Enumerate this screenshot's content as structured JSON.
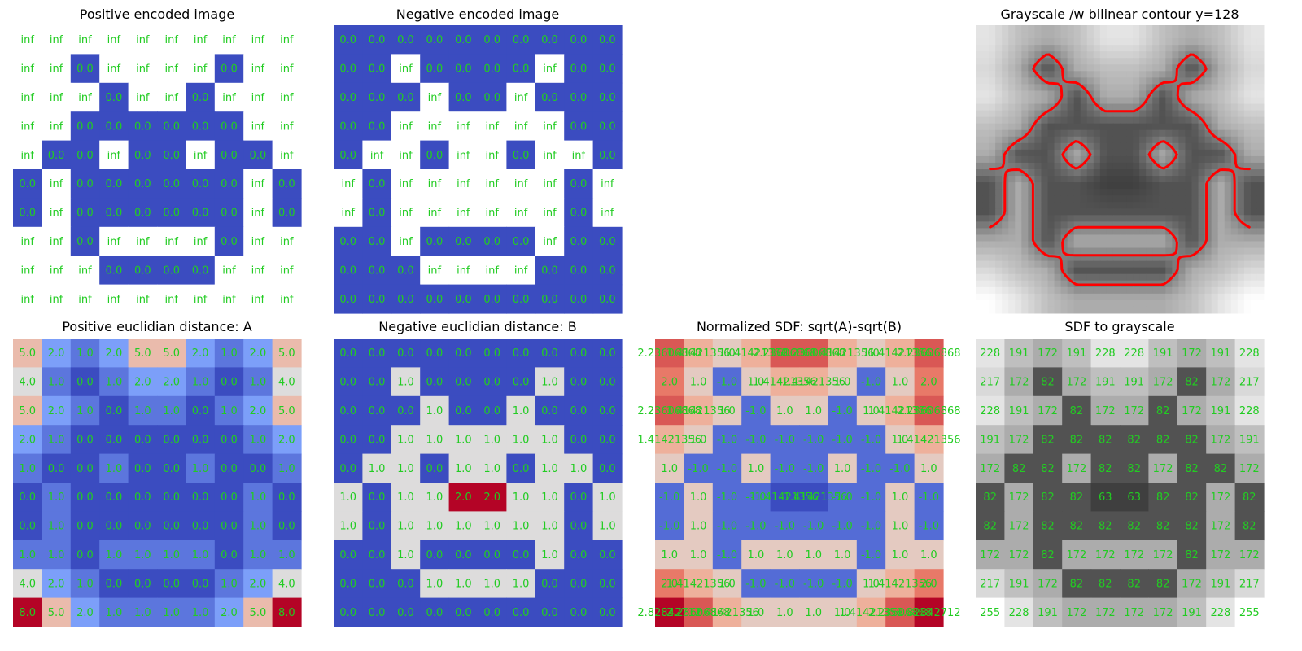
{
  "chart_data": [
    {
      "type": "heatmap",
      "title": "Positive encoded image",
      "colormap": "coolwarm",
      "text_color": "#22cc22",
      "cells": [
        [
          "inf",
          "inf",
          "inf",
          "inf",
          "inf",
          "inf",
          "inf",
          "inf",
          "inf",
          "inf"
        ],
        [
          "inf",
          "inf",
          "0.0",
          "inf",
          "inf",
          "inf",
          "inf",
          "0.0",
          "inf",
          "inf"
        ],
        [
          "inf",
          "inf",
          "inf",
          "0.0",
          "inf",
          "inf",
          "0.0",
          "inf",
          "inf",
          "inf"
        ],
        [
          "inf",
          "inf",
          "0.0",
          "0.0",
          "0.0",
          "0.0",
          "0.0",
          "0.0",
          "inf",
          "inf"
        ],
        [
          "inf",
          "0.0",
          "0.0",
          "inf",
          "0.0",
          "0.0",
          "inf",
          "0.0",
          "0.0",
          "inf"
        ],
        [
          "0.0",
          "inf",
          "0.0",
          "0.0",
          "0.0",
          "0.0",
          "0.0",
          "0.0",
          "inf",
          "0.0"
        ],
        [
          "0.0",
          "inf",
          "0.0",
          "0.0",
          "0.0",
          "0.0",
          "0.0",
          "0.0",
          "inf",
          "0.0"
        ],
        [
          "inf",
          "inf",
          "0.0",
          "inf",
          "inf",
          "inf",
          "inf",
          "0.0",
          "inf",
          "inf"
        ],
        [
          "inf",
          "inf",
          "inf",
          "0.0",
          "0.0",
          "0.0",
          "0.0",
          "inf",
          "inf",
          "inf"
        ],
        [
          "inf",
          "inf",
          "inf",
          "inf",
          "inf",
          "inf",
          "inf",
          "inf",
          "inf",
          "inf"
        ]
      ]
    },
    {
      "type": "heatmap",
      "title": "Negative encoded image",
      "colormap": "coolwarm",
      "text_color": "#22cc22",
      "cells": [
        [
          "0.0",
          "0.0",
          "0.0",
          "0.0",
          "0.0",
          "0.0",
          "0.0",
          "0.0",
          "0.0",
          "0.0"
        ],
        [
          "0.0",
          "0.0",
          "inf",
          "0.0",
          "0.0",
          "0.0",
          "0.0",
          "inf",
          "0.0",
          "0.0"
        ],
        [
          "0.0",
          "0.0",
          "0.0",
          "inf",
          "0.0",
          "0.0",
          "inf",
          "0.0",
          "0.0",
          "0.0"
        ],
        [
          "0.0",
          "0.0",
          "inf",
          "inf",
          "inf",
          "inf",
          "inf",
          "inf",
          "0.0",
          "0.0"
        ],
        [
          "0.0",
          "inf",
          "inf",
          "0.0",
          "inf",
          "inf",
          "0.0",
          "inf",
          "inf",
          "0.0"
        ],
        [
          "inf",
          "0.0",
          "inf",
          "inf",
          "inf",
          "inf",
          "inf",
          "inf",
          "0.0",
          "inf"
        ],
        [
          "inf",
          "0.0",
          "inf",
          "inf",
          "inf",
          "inf",
          "inf",
          "inf",
          "0.0",
          "inf"
        ],
        [
          "0.0",
          "0.0",
          "inf",
          "0.0",
          "0.0",
          "0.0",
          "0.0",
          "inf",
          "0.0",
          "0.0"
        ],
        [
          "0.0",
          "0.0",
          "0.0",
          "inf",
          "inf",
          "inf",
          "inf",
          "0.0",
          "0.0",
          "0.0"
        ],
        [
          "0.0",
          "0.0",
          "0.0",
          "0.0",
          "0.0",
          "0.0",
          "0.0",
          "0.0",
          "0.0",
          "0.0"
        ]
      ]
    },
    {
      "type": "image",
      "title": "Grayscale /w bilinear contour y=128",
      "colormap": "gray",
      "contour_level": 128,
      "contour_color": "#ff0000",
      "grid": [
        [
          228,
          191,
          172,
          191,
          228,
          228,
          191,
          172,
          191,
          228
        ],
        [
          217,
          172,
          82,
          172,
          191,
          191,
          172,
          82,
          172,
          217
        ],
        [
          228,
          191,
          172,
          82,
          172,
          172,
          82,
          172,
          191,
          228
        ],
        [
          191,
          172,
          82,
          82,
          82,
          82,
          82,
          82,
          172,
          191
        ],
        [
          172,
          82,
          82,
          172,
          82,
          82,
          172,
          82,
          82,
          172
        ],
        [
          82,
          172,
          82,
          82,
          63,
          63,
          82,
          82,
          172,
          82
        ],
        [
          82,
          172,
          82,
          82,
          82,
          82,
          82,
          82,
          172,
          82
        ],
        [
          172,
          172,
          82,
          172,
          172,
          172,
          172,
          82,
          172,
          172
        ],
        [
          217,
          191,
          172,
          82,
          82,
          82,
          82,
          172,
          191,
          217
        ],
        [
          255,
          228,
          191,
          172,
          172,
          172,
          172,
          191,
          228,
          255
        ]
      ]
    },
    {
      "type": "heatmap",
      "title": "Positive euclidian distance: A",
      "colormap": "coolwarm",
      "text_color": "#22cc22",
      "cells": [
        [
          "5.0",
          "2.0",
          "1.0",
          "2.0",
          "5.0",
          "5.0",
          "2.0",
          "1.0",
          "2.0",
          "5.0"
        ],
        [
          "4.0",
          "1.0",
          "0.0",
          "1.0",
          "2.0",
          "2.0",
          "1.0",
          "0.0",
          "1.0",
          "4.0"
        ],
        [
          "5.0",
          "2.0",
          "1.0",
          "0.0",
          "1.0",
          "1.0",
          "0.0",
          "1.0",
          "2.0",
          "5.0"
        ],
        [
          "2.0",
          "1.0",
          "0.0",
          "0.0",
          "0.0",
          "0.0",
          "0.0",
          "0.0",
          "1.0",
          "2.0"
        ],
        [
          "1.0",
          "0.0",
          "0.0",
          "1.0",
          "0.0",
          "0.0",
          "1.0",
          "0.0",
          "0.0",
          "1.0"
        ],
        [
          "0.0",
          "1.0",
          "0.0",
          "0.0",
          "0.0",
          "0.0",
          "0.0",
          "0.0",
          "1.0",
          "0.0"
        ],
        [
          "0.0",
          "1.0",
          "0.0",
          "0.0",
          "0.0",
          "0.0",
          "0.0",
          "0.0",
          "1.0",
          "0.0"
        ],
        [
          "1.0",
          "1.0",
          "0.0",
          "1.0",
          "1.0",
          "1.0",
          "1.0",
          "0.0",
          "1.0",
          "1.0"
        ],
        [
          "4.0",
          "2.0",
          "1.0",
          "0.0",
          "0.0",
          "0.0",
          "0.0",
          "1.0",
          "2.0",
          "4.0"
        ],
        [
          "8.0",
          "5.0",
          "2.0",
          "1.0",
          "1.0",
          "1.0",
          "1.0",
          "2.0",
          "5.0",
          "8.0"
        ]
      ]
    },
    {
      "type": "heatmap",
      "title": "Negative euclidian distance: B",
      "colormap": "coolwarm",
      "text_color": "#22cc22",
      "cells": [
        [
          "0.0",
          "0.0",
          "0.0",
          "0.0",
          "0.0",
          "0.0",
          "0.0",
          "0.0",
          "0.0",
          "0.0"
        ],
        [
          "0.0",
          "0.0",
          "1.0",
          "0.0",
          "0.0",
          "0.0",
          "0.0",
          "1.0",
          "0.0",
          "0.0"
        ],
        [
          "0.0",
          "0.0",
          "0.0",
          "1.0",
          "0.0",
          "0.0",
          "1.0",
          "0.0",
          "0.0",
          "0.0"
        ],
        [
          "0.0",
          "0.0",
          "1.0",
          "1.0",
          "1.0",
          "1.0",
          "1.0",
          "1.0",
          "0.0",
          "0.0"
        ],
        [
          "0.0",
          "1.0",
          "1.0",
          "0.0",
          "1.0",
          "1.0",
          "0.0",
          "1.0",
          "1.0",
          "0.0"
        ],
        [
          "1.0",
          "0.0",
          "1.0",
          "1.0",
          "2.0",
          "2.0",
          "1.0",
          "1.0",
          "0.0",
          "1.0"
        ],
        [
          "1.0",
          "0.0",
          "1.0",
          "1.0",
          "1.0",
          "1.0",
          "1.0",
          "1.0",
          "0.0",
          "1.0"
        ],
        [
          "0.0",
          "0.0",
          "1.0",
          "0.0",
          "0.0",
          "0.0",
          "0.0",
          "1.0",
          "0.0",
          "0.0"
        ],
        [
          "0.0",
          "0.0",
          "0.0",
          "1.0",
          "1.0",
          "1.0",
          "1.0",
          "0.0",
          "0.0",
          "0.0"
        ],
        [
          "0.0",
          "0.0",
          "0.0",
          "0.0",
          "0.0",
          "0.0",
          "0.0",
          "0.0",
          "0.0",
          "0.0"
        ]
      ]
    },
    {
      "type": "heatmap",
      "title": "Normalized SDF: sqrt(A)-sqrt(B)",
      "colormap": "coolwarm",
      "text_color": "#22cc22",
      "cells": [
        [
          "2.23606868",
          "1.41421356",
          "1.0",
          "1.41421356",
          "2.23606868",
          "2.23606868",
          "1.41421356",
          "1.0",
          "1.41421356",
          "2.23606868"
        ],
        [
          "2.0",
          "1.0",
          "-1.0",
          "1.0",
          "1.41421356",
          "1.41421356",
          "1.0",
          "-1.0",
          "1.0",
          "2.0"
        ],
        [
          "2.23606868",
          "1.41421356",
          "1.0",
          "-1.0",
          "1.0",
          "1.0",
          "-1.0",
          "1.0",
          "1.41421356",
          "2.23606868"
        ],
        [
          "1.41421356",
          "1.0",
          "-1.0",
          "-1.0",
          "-1.0",
          "-1.0",
          "-1.0",
          "-1.0",
          "1.0",
          "1.41421356"
        ],
        [
          "1.0",
          "-1.0",
          "-1.0",
          "1.0",
          "-1.0",
          "-1.0",
          "1.0",
          "-1.0",
          "-1.0",
          "1.0"
        ],
        [
          "-1.0",
          "1.0",
          "-1.0",
          "-1.0",
          "-1.41421356",
          "-1.41421356",
          "-1.0",
          "-1.0",
          "1.0",
          "-1.0"
        ],
        [
          "-1.0",
          "1.0",
          "-1.0",
          "-1.0",
          "-1.0",
          "-1.0",
          "-1.0",
          "-1.0",
          "1.0",
          "-1.0"
        ],
        [
          "1.0",
          "1.0",
          "-1.0",
          "1.0",
          "1.0",
          "1.0",
          "1.0",
          "-1.0",
          "1.0",
          "1.0"
        ],
        [
          "2.0",
          "1.41421356",
          "1.0",
          "-1.0",
          "-1.0",
          "-1.0",
          "-1.0",
          "1.0",
          "1.41421356",
          "2.0"
        ],
        [
          "2.82842712",
          "2.23606868",
          "1.41421356",
          "1.0",
          "1.0",
          "1.0",
          "1.0",
          "1.41421356",
          "2.23606868",
          "2.82842712"
        ]
      ]
    },
    {
      "type": "heatmap",
      "title": "SDF to grayscale",
      "colormap": "gray",
      "text_color": "#22cc22",
      "cells": [
        [
          "228",
          "191",
          "172",
          "191",
          "228",
          "228",
          "191",
          "172",
          "191",
          "228"
        ],
        [
          "217",
          "172",
          "82",
          "172",
          "191",
          "191",
          "172",
          "82",
          "172",
          "217"
        ],
        [
          "228",
          "191",
          "172",
          "82",
          "172",
          "172",
          "82",
          "172",
          "191",
          "228"
        ],
        [
          "191",
          "172",
          "82",
          "82",
          "82",
          "82",
          "82",
          "82",
          "172",
          "191"
        ],
        [
          "172",
          "82",
          "82",
          "172",
          "82",
          "82",
          "172",
          "82",
          "82",
          "172"
        ],
        [
          "82",
          "172",
          "82",
          "82",
          "63",
          "63",
          "82",
          "82",
          "172",
          "82"
        ],
        [
          "82",
          "172",
          "82",
          "82",
          "82",
          "82",
          "82",
          "82",
          "172",
          "82"
        ],
        [
          "172",
          "172",
          "82",
          "172",
          "172",
          "172",
          "172",
          "82",
          "172",
          "172"
        ],
        [
          "217",
          "191",
          "172",
          "82",
          "82",
          "82",
          "82",
          "172",
          "191",
          "217"
        ],
        [
          "255",
          "228",
          "191",
          "172",
          "172",
          "172",
          "172",
          "191",
          "228",
          "255"
        ]
      ]
    }
  ]
}
